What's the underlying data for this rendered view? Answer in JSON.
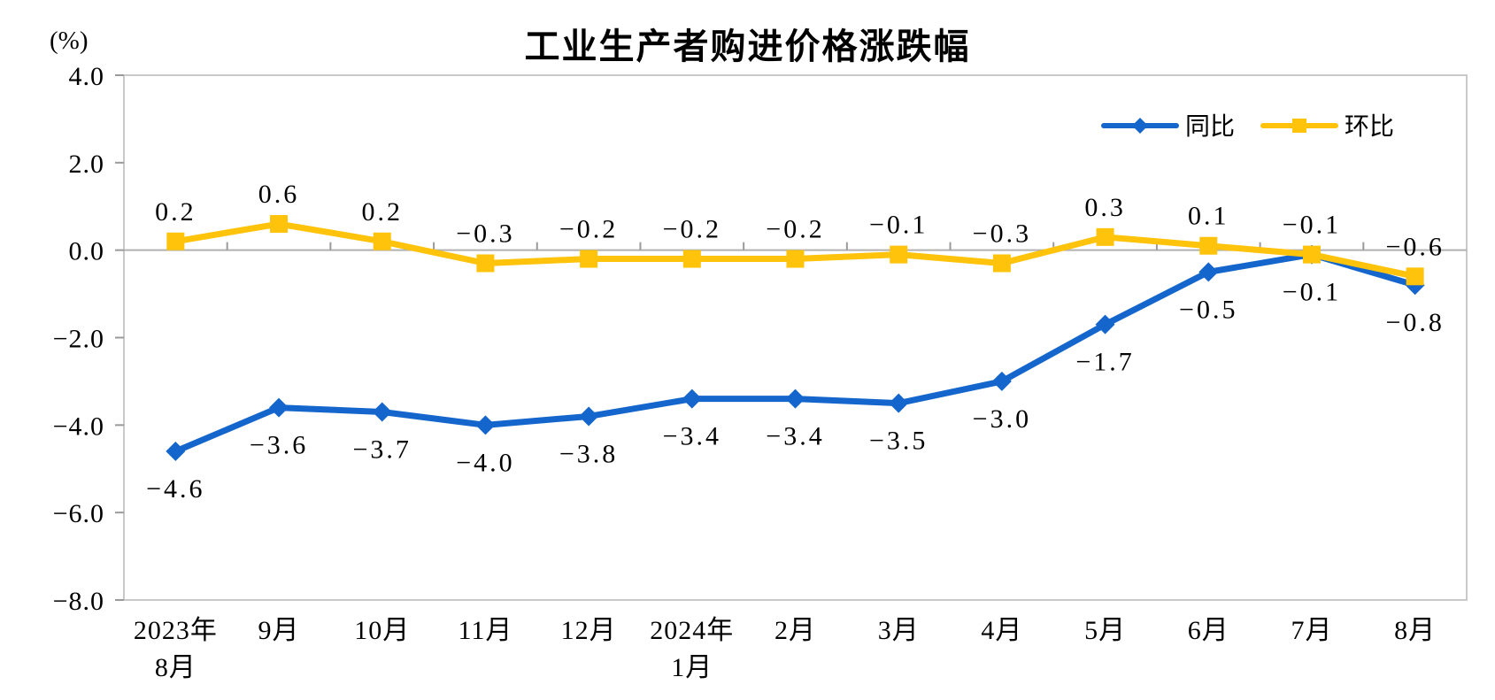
{
  "chart_data": {
    "type": "line",
    "title": "工业生产者购进价格涨跌幅",
    "ylabel": "(%)",
    "xlabel": "",
    "categories": [
      "2023年\n8月",
      "9月",
      "10月",
      "11月",
      "12月",
      "2024年\n1月",
      "2月",
      "3月",
      "4月",
      "5月",
      "6月",
      "7月",
      "8月"
    ],
    "series": [
      {
        "key": "yoy",
        "name": "同比",
        "marker": "diamond",
        "color": "#1566CC",
        "label_position": "below",
        "values": [
          -4.6,
          -3.6,
          -3.7,
          -4.0,
          -3.8,
          -3.4,
          -3.4,
          -3.5,
          -3.0,
          -1.7,
          -0.5,
          -0.1,
          -0.8
        ]
      },
      {
        "key": "mom",
        "name": "环比",
        "marker": "square",
        "color": "#FFC30B",
        "label_position": "above",
        "values": [
          0.2,
          0.6,
          0.2,
          -0.3,
          -0.2,
          -0.2,
          -0.2,
          -0.1,
          -0.3,
          0.3,
          0.1,
          -0.1,
          -0.6
        ]
      }
    ],
    "ylim": [
      -8.0,
      4.0
    ],
    "ytick_step": 2.0,
    "grid": false,
    "legend_position": "top-right-inside",
    "colors": {
      "frame": "#C9C9C9",
      "zero_line": "#B0B0B0",
      "tick": "#9A9A9A",
      "text": "#000000"
    }
  }
}
